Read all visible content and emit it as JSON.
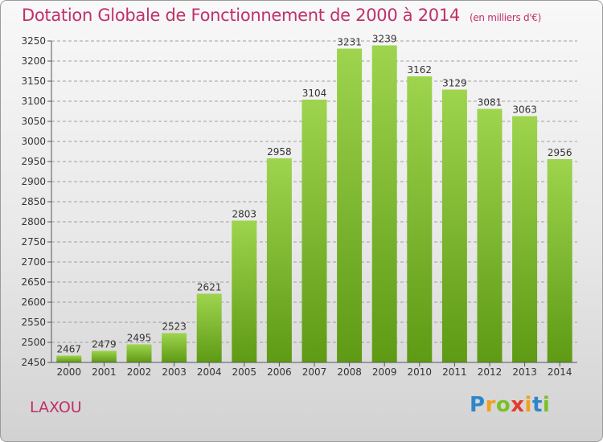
{
  "header": {
    "title": "Dotation Globale de Fonctionnement de 2000 à 2014",
    "unit": "(en milliers d'€)"
  },
  "footer": {
    "commune": "LAXOU",
    "logo_text": "Proxiti"
  },
  "colors": {
    "title": "#c0306a",
    "bar_top": "#9ed44e",
    "bar_bottom": "#5e9a14",
    "grid": "#9f9f9f"
  },
  "chart_data": {
    "type": "bar",
    "title": "Dotation Globale de Fonctionnement de 2000 à 2014",
    "xlabel": "",
    "ylabel": "",
    "categories": [
      "2000",
      "2001",
      "2002",
      "2003",
      "2004",
      "2005",
      "2006",
      "2007",
      "2008",
      "2009",
      "2010",
      "2011",
      "2012",
      "2013",
      "2014"
    ],
    "values": [
      2467,
      2479,
      2495,
      2523,
      2621,
      2803,
      2958,
      3104,
      3231,
      3239,
      3162,
      3129,
      3081,
      3063,
      2956
    ],
    "ylim": [
      2450,
      3250
    ],
    "yticks": [
      2450,
      2500,
      2550,
      2600,
      2650,
      2700,
      2750,
      2800,
      2850,
      2900,
      2950,
      3000,
      3050,
      3100,
      3150,
      3200,
      3250
    ],
    "grid": true,
    "legend": "none"
  }
}
